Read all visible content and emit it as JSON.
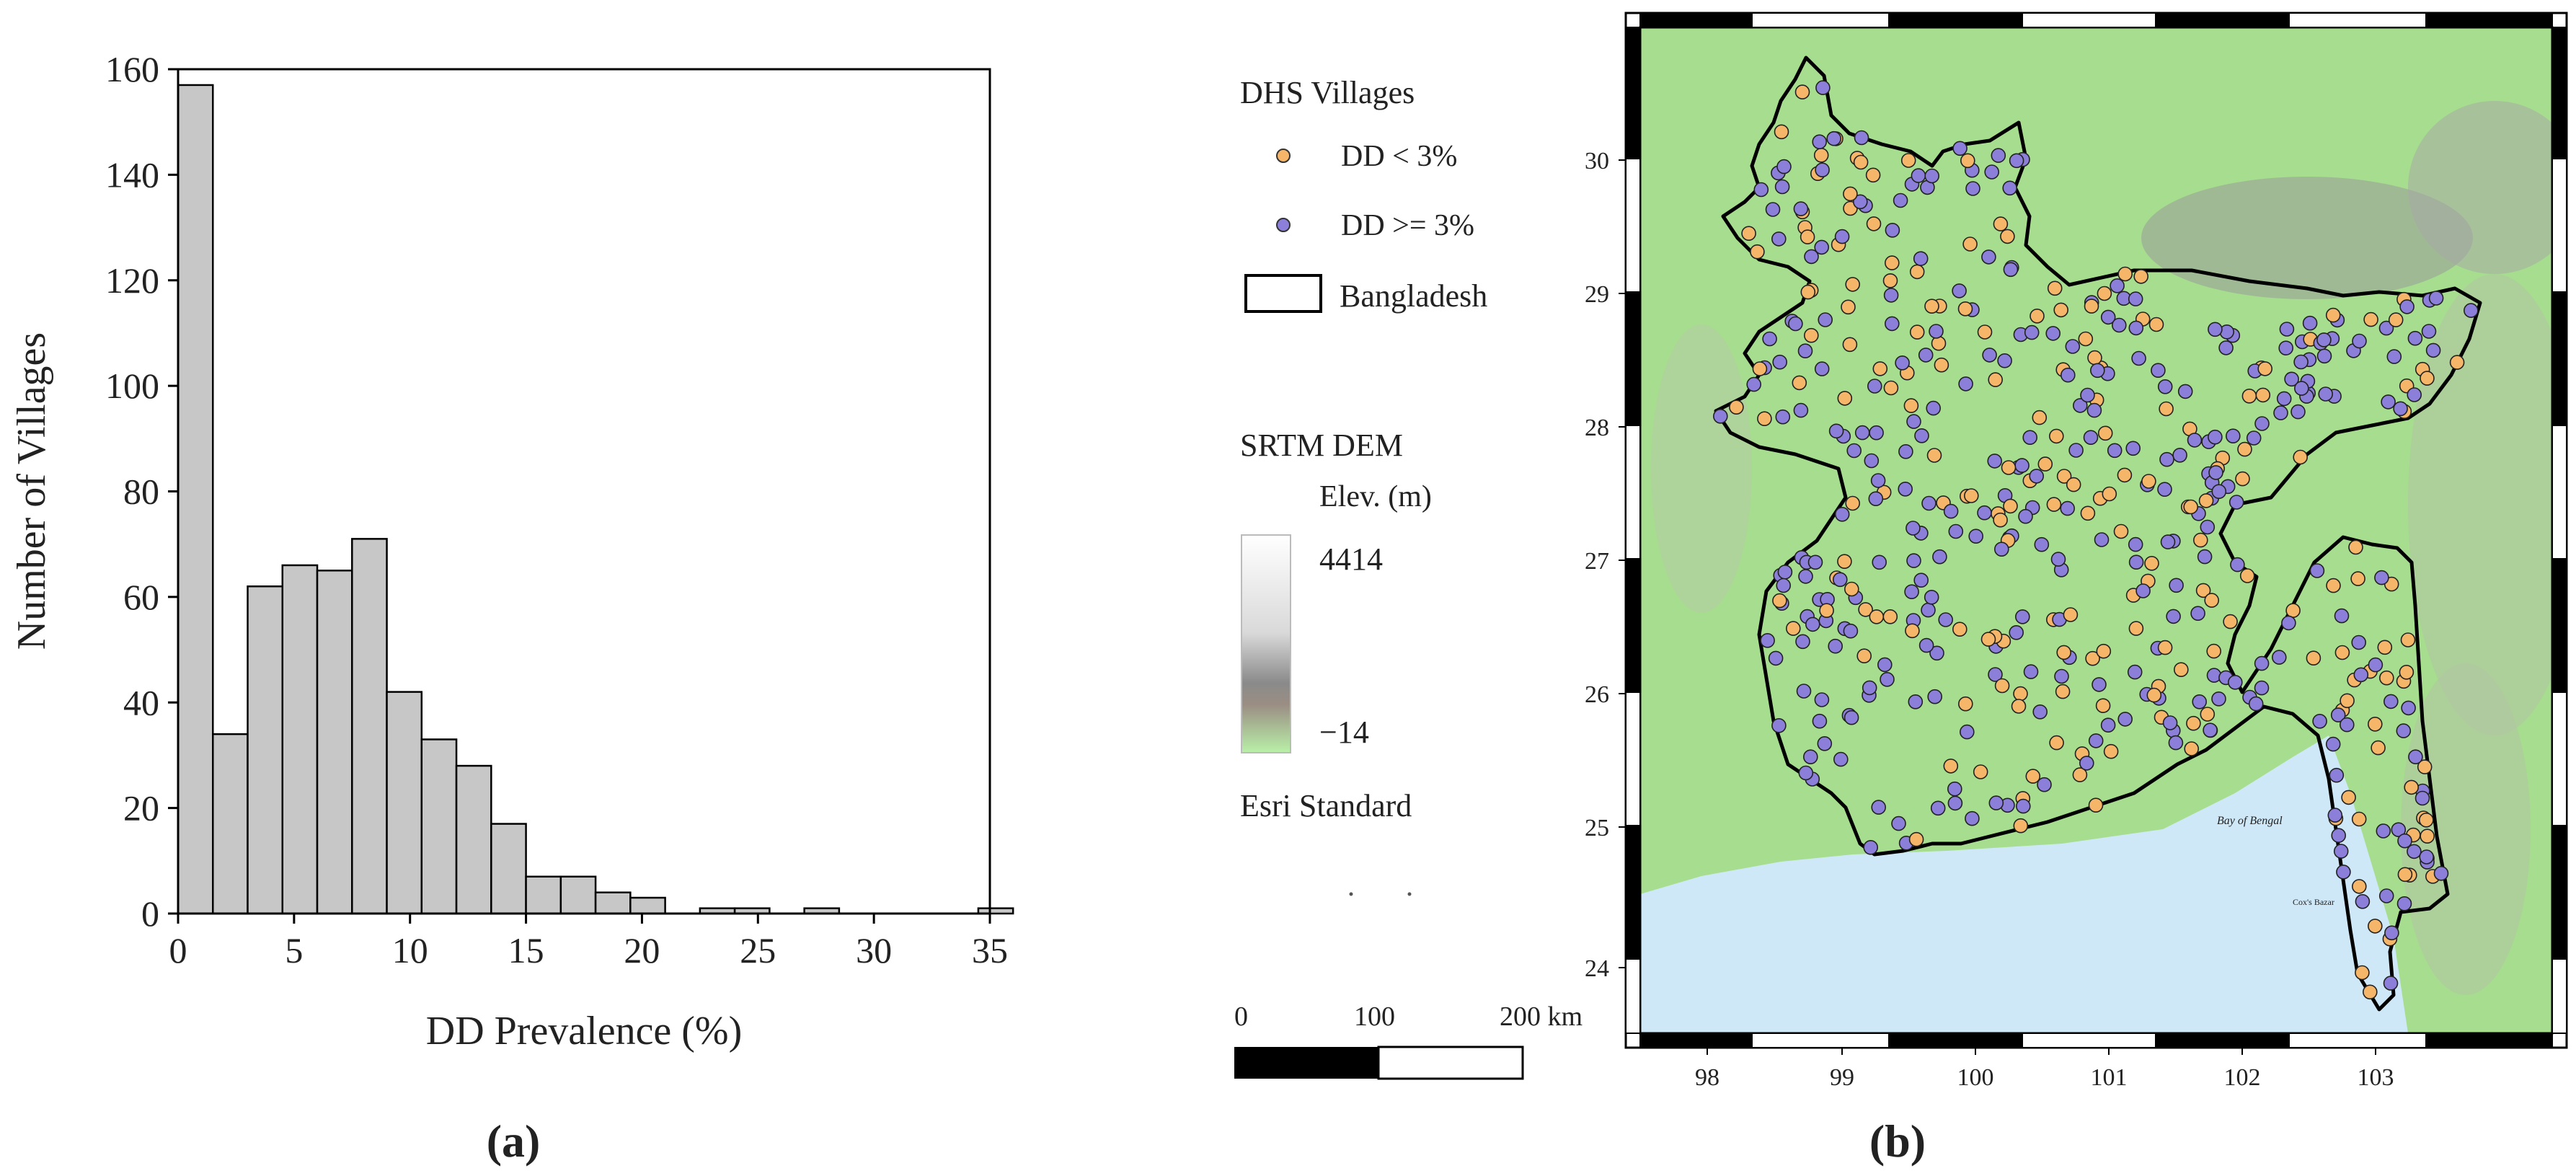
{
  "panel_a": {
    "label": "(a)",
    "chart_data": {
      "type": "bar",
      "xlabel": "DD Prevalence (%)",
      "ylabel": "Number of Villages",
      "xlim": [
        0,
        35
      ],
      "ylim": [
        0,
        160
      ],
      "xticks": [
        0,
        5,
        10,
        15,
        20,
        25,
        30,
        35
      ],
      "yticks": [
        0,
        20,
        40,
        60,
        80,
        100,
        120,
        140,
        160
      ],
      "bin_width": 1.5,
      "bin_start": 0,
      "values": [
        157,
        34,
        62,
        66,
        65,
        71,
        42,
        33,
        28,
        17,
        7,
        7,
        4,
        3,
        0,
        1,
        1,
        0,
        1,
        0,
        0,
        0,
        0,
        1
      ],
      "grid": false,
      "bar_color": "#c7c7c7"
    }
  },
  "panel_b": {
    "label": "(b)",
    "legend": {
      "title": "DHS Villages",
      "item_low": "DD < 3%",
      "item_high": "DD >= 3%",
      "item_boundary": "Bangladesh",
      "low_color": "#f5b66a",
      "high_color": "#8b7fd9",
      "dem_title": "SRTM DEM",
      "dem_units": "Elev. (m)",
      "dem_max": "4414",
      "dem_min": "−14",
      "basemap": "Esri Standard"
    },
    "scalebar": {
      "t0": "0",
      "t1": "100",
      "t2": "200 km"
    },
    "map_x_ticks": [
      "98",
      "99",
      "100",
      "101",
      "102",
      "103"
    ],
    "map_y_ticks": [
      "30",
      "29",
      "28",
      "27",
      "26",
      "25",
      "24"
    ],
    "basemap_labels": {
      "bay": "Bay of Bengal",
      "city": "Cox's Bazar"
    },
    "colors": {
      "land": "#a6dd8e",
      "water": "#cfe8f7",
      "boundary": "#000000"
    }
  }
}
